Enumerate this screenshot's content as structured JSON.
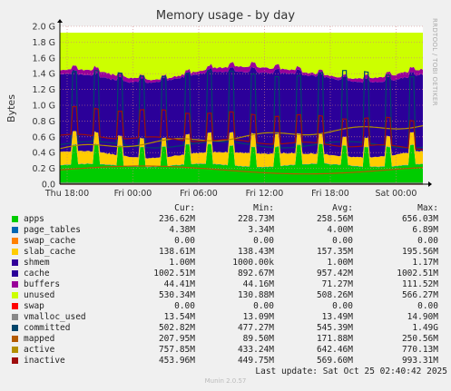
{
  "chart_data": {
    "type": "area",
    "title": "Memory usage - by day",
    "ylabel": "Bytes",
    "xlabel": "",
    "ylim": [
      0,
      2.0
    ],
    "y_unit": "G",
    "yticks": [
      "0.0",
      "0.2 G",
      "0.4 G",
      "0.6 G",
      "0.8 G",
      "1.0 G",
      "1.2 G",
      "1.4 G",
      "1.6 G",
      "1.8 G",
      "2.0 G"
    ],
    "xticks": [
      "Thu 18:00",
      "Fri 00:00",
      "Fri 06:00",
      "Fri 12:00",
      "Fri 18:00",
      "Sat 00:00"
    ],
    "grid": true,
    "series": [
      {
        "name": "apps",
        "color": "#00cc00",
        "typical_gb": 0.231
      },
      {
        "name": "page_tables",
        "color": "#0066b3",
        "typical_gb": 0.0044
      },
      {
        "name": "swap_cache",
        "color": "#ff8000",
        "typical_gb": 0.0
      },
      {
        "name": "slab_cache",
        "color": "#ffcc00",
        "typical_gb": 0.135
      },
      {
        "name": "shmem",
        "color": "#330099",
        "typical_gb": 0.001
      },
      {
        "name": "cache",
        "color": "#2b0099",
        "typical_gb": 0.98
      },
      {
        "name": "buffers",
        "color": "#990099",
        "typical_gb": 0.043
      },
      {
        "name": "unused",
        "color": "#ccff00",
        "typical_gb": 0.518
      }
    ],
    "lines": [
      {
        "name": "swap",
        "color": "#ff0000"
      },
      {
        "name": "vmalloc_used",
        "color": "#888888"
      },
      {
        "name": "committed",
        "color": "#00456b"
      },
      {
        "name": "mapped",
        "color": "#b35a00"
      },
      {
        "name": "active",
        "color": "#b38f00"
      },
      {
        "name": "inactive",
        "color": "#9e0d0d"
      }
    ]
  },
  "side_text": "RRDTOOL / TOBI OETIKER",
  "legend": {
    "headers": {
      "cur": "Cur:",
      "min": "Min:",
      "avg": "Avg:",
      "max": "Max:"
    },
    "rows": [
      {
        "name": "apps",
        "color": "#00cc00",
        "cur": "236.62M",
        "min": "228.73M",
        "avg": "258.56M",
        "max": "656.03M"
      },
      {
        "name": "page_tables",
        "color": "#0066b3",
        "cur": "4.38M",
        "min": "3.34M",
        "avg": "4.00M",
        "max": "6.89M"
      },
      {
        "name": "swap_cache",
        "color": "#ff8000",
        "cur": "0.00",
        "min": "0.00",
        "avg": "0.00",
        "max": "0.00"
      },
      {
        "name": "slab_cache",
        "color": "#ffcc00",
        "cur": "138.61M",
        "min": "138.43M",
        "avg": "157.35M",
        "max": "195.56M"
      },
      {
        "name": "shmem",
        "color": "#330099",
        "cur": "1.00M",
        "min": "1000.00k",
        "avg": "1.00M",
        "max": "1.17M"
      },
      {
        "name": "cache",
        "color": "#2b0099",
        "cur": "1002.51M",
        "min": "892.67M",
        "avg": "957.42M",
        "max": "1002.51M"
      },
      {
        "name": "buffers",
        "color": "#990099",
        "cur": "44.41M",
        "min": "44.16M",
        "avg": "71.27M",
        "max": "111.52M"
      },
      {
        "name": "unused",
        "color": "#ccff00",
        "cur": "530.34M",
        "min": "130.88M",
        "avg": "508.26M",
        "max": "566.27M"
      },
      {
        "name": "swap",
        "color": "#ff0000",
        "cur": "0.00",
        "min": "0.00",
        "avg": "0.00",
        "max": "0.00"
      },
      {
        "name": "vmalloc_used",
        "color": "#888888",
        "cur": "13.54M",
        "min": "13.09M",
        "avg": "13.49M",
        "max": "14.90M"
      },
      {
        "name": "committed",
        "color": "#00456b",
        "cur": "502.82M",
        "min": "477.27M",
        "avg": "545.39M",
        "max": "1.49G"
      },
      {
        "name": "mapped",
        "color": "#b35a00",
        "cur": "207.95M",
        "min": "89.50M",
        "avg": "171.88M",
        "max": "250.56M"
      },
      {
        "name": "active",
        "color": "#b38f00",
        "cur": "757.85M",
        "min": "433.24M",
        "avg": "642.46M",
        "max": "770.13M"
      },
      {
        "name": "inactive",
        "color": "#9e0d0d",
        "cur": "453.96M",
        "min": "449.75M",
        "avg": "569.60M",
        "max": "993.31M"
      }
    ],
    "last_update": "Last update: Sat Oct 25 02:40:42 2025"
  },
  "footer": "Munin 2.0.57"
}
